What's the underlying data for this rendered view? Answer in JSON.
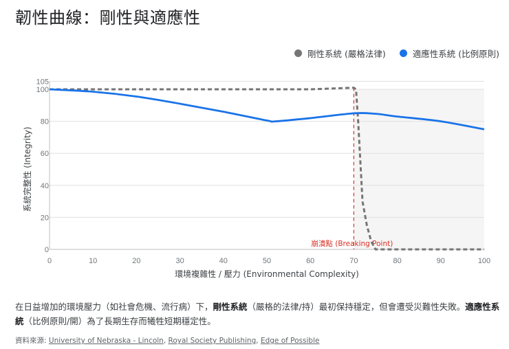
{
  "title": "韌性曲線：剛性與適應性",
  "legend": [
    {
      "label": "剛性系統 (嚴格法律)",
      "color": "#757575"
    },
    {
      "label": "適應性系統 (比例原則)",
      "color": "#1a73e8"
    }
  ],
  "axes": {
    "x_title": "環境複雜性 / 壓力 (Environmental Complexity)",
    "y_title": "系統完整性 (Integrity)",
    "x_ticks": [
      "0",
      "10",
      "20",
      "30",
      "40",
      "50",
      "60",
      "70",
      "80",
      "90",
      "100"
    ],
    "y_ticks": [
      "0",
      "20",
      "40",
      "60",
      "80",
      "100",
      "105"
    ]
  },
  "annotation": {
    "label": "崩潰點 (Breaking Point)",
    "x": 70,
    "color": "#d93025"
  },
  "description": {
    "part1": "在日益增加的環境壓力（如社會危機、流行病）下，",
    "bold1": "剛性系統",
    "part2": "（嚴格的法律/持）最初保持穩定，但會遭受災難性失敗。",
    "bold2": "適應性系統",
    "part3": "（比例原則/開）為了長期生存而犧牲短期穩定性。"
  },
  "sources": {
    "label": "資料來源: ",
    "links": [
      "University of Nebraska - Lincoln",
      "Royal Society Publishing",
      "Edge of Possible"
    ]
  },
  "chart_data": {
    "type": "line",
    "title": "韌性曲線：剛性與適應性",
    "xlabel": "環境複雜性 / 壓力 (Environmental Complexity)",
    "ylabel": "系統完整性 (Integrity)",
    "xlim": [
      0,
      100
    ],
    "ylim": [
      0,
      105
    ],
    "grid": true,
    "legend_position": "top-right",
    "shaded_region": {
      "x_start": 70,
      "x_end": 100,
      "color": "#f5f5f5"
    },
    "annotations": [
      {
        "type": "vline",
        "x": 70,
        "label": "崩潰點 (Breaking Point)",
        "style": "dashed",
        "color": "#d93025"
      }
    ],
    "series": [
      {
        "name": "剛性系統 (嚴格法律)",
        "color": "#757575",
        "style": "dashed",
        "x": [
          0,
          10,
          20,
          30,
          40,
          50,
          60,
          70,
          70.5,
          71,
          72,
          73,
          74,
          75,
          80,
          90,
          100
        ],
        "values": [
          100,
          100,
          100,
          100,
          100,
          100,
          100,
          101,
          100,
          80,
          30,
          15,
          5,
          0,
          0,
          0,
          0
        ]
      },
      {
        "name": "適應性系統 (比例原則)",
        "color": "#1a73e8",
        "style": "solid",
        "x": [
          0,
          10,
          20,
          30,
          40,
          50,
          52,
          60,
          70,
          75,
          80,
          90,
          100
        ],
        "values": [
          100,
          98.5,
          95.5,
          91,
          86,
          80.5,
          80,
          82,
          85,
          84.7,
          83,
          80,
          75
        ]
      }
    ]
  }
}
